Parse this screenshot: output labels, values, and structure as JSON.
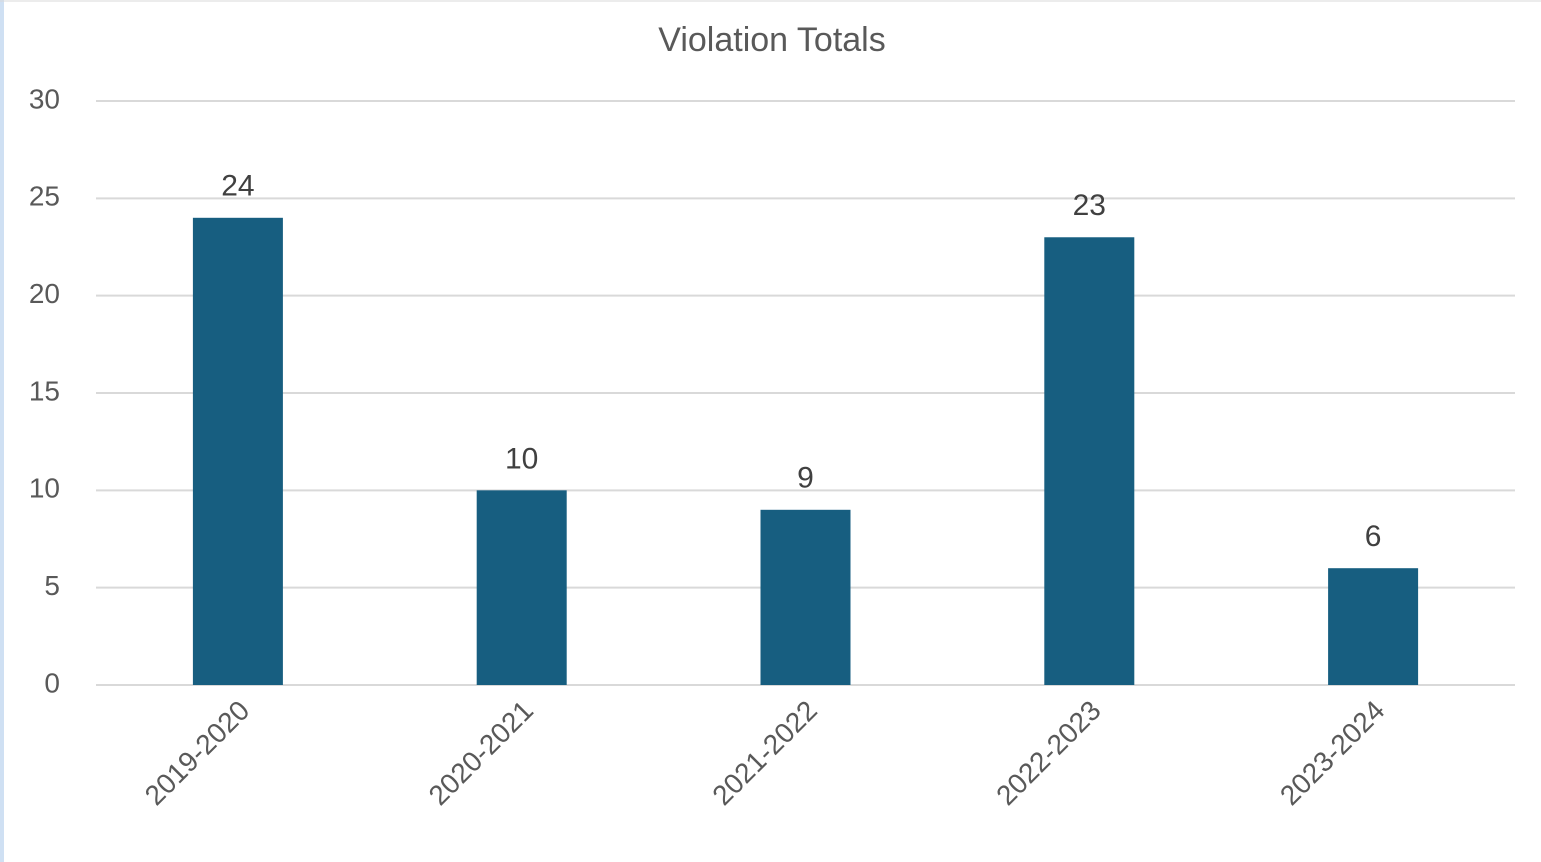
{
  "chart_data": {
    "type": "bar",
    "title": "Violation Totals",
    "categories": [
      "2019-2020",
      "2020-2021",
      "2021-2022",
      "2022-2023",
      "2023-2024"
    ],
    "values": [
      24,
      10,
      9,
      23,
      6
    ],
    "color": "#175e80",
    "ylim": [
      0,
      30
    ],
    "yticks": [
      0,
      5,
      10,
      15,
      20,
      25,
      30
    ],
    "grid": true
  }
}
